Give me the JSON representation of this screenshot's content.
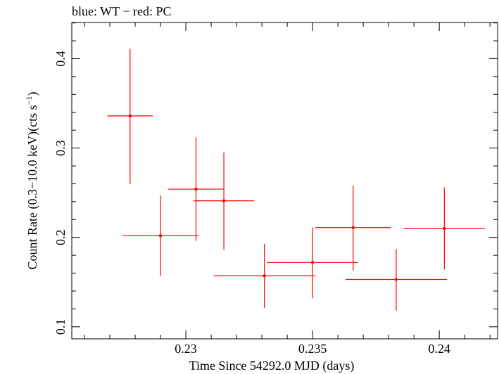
{
  "chart_data": {
    "type": "scatter",
    "title": "blue: WT − red: PC",
    "xlabel": "Time Since 54292.0 MJD (days)",
    "ylabel_main": "Count Rate (0.3−10.0 keV)(cts s",
    "ylabel_sup": "−1",
    "ylabel_end": ")",
    "xlim": [
      0.2255,
      0.2423
    ],
    "ylim": [
      0.0865,
      0.4405
    ],
    "x_ticks": [
      {
        "value": 0.23,
        "label": "0.23"
      },
      {
        "value": 0.235,
        "label": "0.235"
      },
      {
        "value": 0.24,
        "label": "0.24"
      }
    ],
    "y_ticks": [
      {
        "value": 0.1,
        "label": "0.1"
      },
      {
        "value": 0.2,
        "label": "0.2"
      },
      {
        "value": 0.3,
        "label": "0.3"
      },
      {
        "value": 0.4,
        "label": "0.4"
      }
    ],
    "x_minor_step": 0.001,
    "y_minor_step": 0.02,
    "grid": false,
    "series": [
      {
        "color": "#ff0000",
        "points": [
          {
            "x": 0.2278,
            "xerr_lo": 0.0009,
            "xerr_hi": 0.0009,
            "y": 0.336,
            "yerr_lo": 0.076,
            "yerr_hi": 0.075
          },
          {
            "x": 0.229,
            "xerr_lo": 0.0015,
            "xerr_hi": 0.0015,
            "y": 0.202,
            "yerr_lo": 0.045,
            "yerr_hi": 0.045
          },
          {
            "x": 0.2304,
            "xerr_lo": 0.0011,
            "xerr_hi": 0.0011,
            "y": 0.254,
            "yerr_lo": 0.058,
            "yerr_hi": 0.058
          },
          {
            "x": 0.2315,
            "xerr_lo": 0.0012,
            "xerr_hi": 0.0012,
            "y": 0.241,
            "yerr_lo": 0.055,
            "yerr_hi": 0.054
          },
          {
            "x": 0.2331,
            "xerr_lo": 0.002,
            "xerr_hi": 0.002,
            "y": 0.157,
            "yerr_lo": 0.036,
            "yerr_hi": 0.036
          },
          {
            "x": 0.235,
            "xerr_lo": 0.0018,
            "xerr_hi": 0.0018,
            "y": 0.172,
            "yerr_lo": 0.04,
            "yerr_hi": 0.039
          },
          {
            "x": 0.2366,
            "xerr_lo": 0.0015,
            "xerr_hi": 0.0015,
            "y": 0.211,
            "yerr_lo": 0.048,
            "yerr_hi": 0.047
          },
          {
            "x": 0.2383,
            "xerr_lo": 0.002,
            "xerr_hi": 0.002,
            "y": 0.153,
            "yerr_lo": 0.035,
            "yerr_hi": 0.034
          },
          {
            "x": 0.2402,
            "xerr_lo": 0.0016,
            "xerr_hi": 0.0016,
            "y": 0.21,
            "yerr_lo": 0.046,
            "yerr_hi": 0.046
          }
        ]
      }
    ]
  }
}
